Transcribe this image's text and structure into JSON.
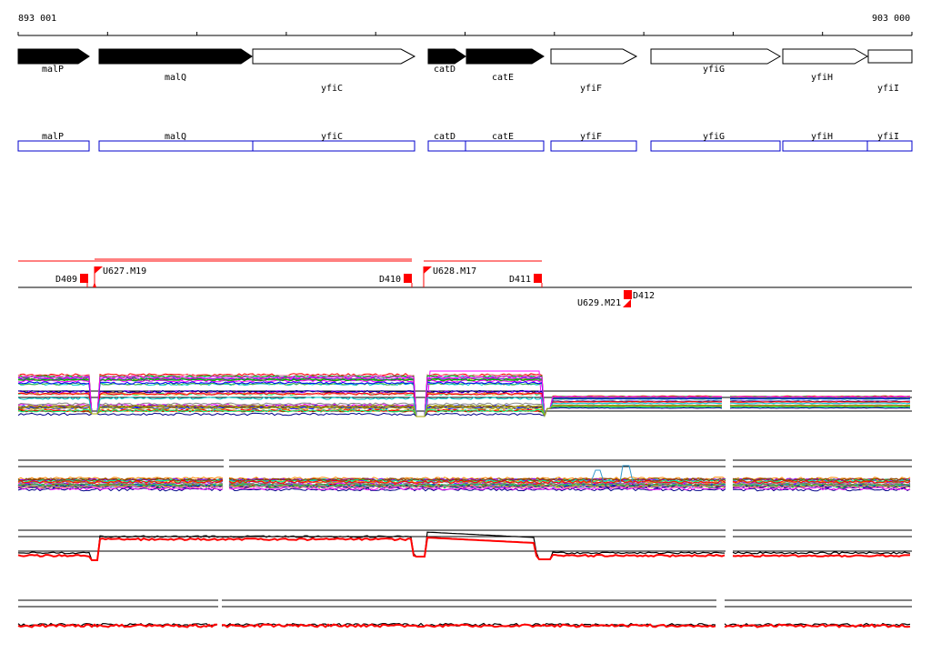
{
  "coords": {
    "start": "893 001",
    "end": "903 000"
  },
  "genes": [
    {
      "name": "malP",
      "strand": "+",
      "filled": true
    },
    {
      "name": "malQ",
      "strand": "+",
      "filled": true
    },
    {
      "name": "yfiC",
      "strand": "+",
      "filled": false
    },
    {
      "name": "catD",
      "strand": "+",
      "filled": true
    },
    {
      "name": "catE",
      "strand": "+",
      "filled": true
    },
    {
      "name": "yfiF",
      "strand": "+",
      "filled": false
    },
    {
      "name": "yfiG",
      "strand": "+",
      "filled": false
    },
    {
      "name": "yfiH",
      "strand": "+",
      "filled": false
    },
    {
      "name": "yfiI",
      "strand": "+",
      "filled": false
    }
  ],
  "features": [
    {
      "label": "D409"
    },
    {
      "label": "U627.M19"
    },
    {
      "label": "D410"
    },
    {
      "label": "U628.M17"
    },
    {
      "label": "D411"
    },
    {
      "label": "D412"
    },
    {
      "label": "U629.M21"
    }
  ],
  "colors": {
    "axis": "#000000",
    "gene_filled": "#000000",
    "gene_box": "#0000cc",
    "feature": "#ff0000",
    "line_palette": [
      "#ff0000",
      "#00aa00",
      "#0000ff",
      "#ff00ff",
      "#00cccc",
      "#aaaa00",
      "#888888",
      "#ff8800",
      "#8800ff",
      "#00ff88",
      "#884400",
      "#000088",
      "#ff88aa",
      "#44aa44"
    ]
  }
}
